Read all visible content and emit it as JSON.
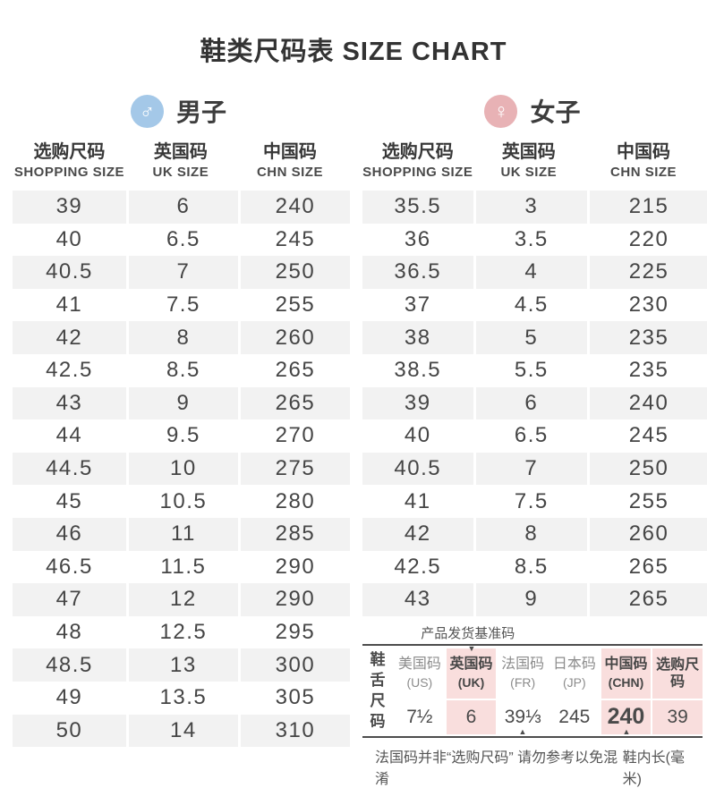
{
  "title": "鞋类尺码表 SIZE CHART",
  "icons": {
    "male": "♂",
    "female": "♀",
    "down_arrow": "▼",
    "up_arrow": "▲"
  },
  "columns": {
    "shopping_zh": "选购尺码",
    "shopping_en": "SHOPPING SIZE",
    "uk_zh": "英国码",
    "uk_en": "UK SIZE",
    "chn_zh": "中国码",
    "chn_en": "CHN SIZE"
  },
  "men": {
    "label": "男子",
    "accent": "#a4c8e8",
    "rows": [
      [
        "39",
        "6",
        "240"
      ],
      [
        "40",
        "6.5",
        "245"
      ],
      [
        "40.5",
        "7",
        "250"
      ],
      [
        "41",
        "7.5",
        "255"
      ],
      [
        "42",
        "8",
        "260"
      ],
      [
        "42.5",
        "8.5",
        "265"
      ],
      [
        "43",
        "9",
        "265"
      ],
      [
        "44",
        "9.5",
        "270"
      ],
      [
        "44.5",
        "10",
        "275"
      ],
      [
        "45",
        "10.5",
        "280"
      ],
      [
        "46",
        "11",
        "285"
      ],
      [
        "46.5",
        "11.5",
        "290"
      ],
      [
        "47",
        "12",
        "290"
      ],
      [
        "48",
        "12.5",
        "295"
      ],
      [
        "48.5",
        "13",
        "300"
      ],
      [
        "49",
        "13.5",
        "305"
      ],
      [
        "50",
        "14",
        "310"
      ]
    ]
  },
  "women": {
    "label": "女子",
    "accent": "#e8b2b5",
    "rows": [
      [
        "35.5",
        "3",
        "215"
      ],
      [
        "36",
        "3.5",
        "220"
      ],
      [
        "36.5",
        "4",
        "225"
      ],
      [
        "37",
        "4.5",
        "230"
      ],
      [
        "38",
        "5",
        "235"
      ],
      [
        "38.5",
        "5.5",
        "235"
      ],
      [
        "39",
        "6",
        "240"
      ],
      [
        "40",
        "6.5",
        "245"
      ],
      [
        "40.5",
        "7",
        "250"
      ],
      [
        "41",
        "7.5",
        "255"
      ],
      [
        "42",
        "8",
        "260"
      ],
      [
        "42.5",
        "8.5",
        "265"
      ],
      [
        "43",
        "9",
        "265"
      ]
    ]
  },
  "reference": {
    "top_label": "产品发货基准码",
    "row_label": "鞋舌尺码",
    "highlight_color": "#f9dedd",
    "columns": [
      {
        "key": "us",
        "zh": "美国码",
        "sub": "(US)",
        "value": "7½",
        "highlight": false,
        "arrow_top": false,
        "arrow_bottom": false,
        "emphasis": false
      },
      {
        "key": "uk",
        "zh": "英国码",
        "sub": "(UK)",
        "value": "6",
        "highlight": true,
        "arrow_top": true,
        "arrow_bottom": false,
        "emphasis": false
      },
      {
        "key": "fr",
        "zh": "法国码",
        "sub": "(FR)",
        "value": "39⅓",
        "highlight": false,
        "arrow_top": false,
        "arrow_bottom": true,
        "emphasis": false
      },
      {
        "key": "jp",
        "zh": "日本码",
        "sub": "(JP)",
        "value": "245",
        "highlight": false,
        "arrow_top": false,
        "arrow_bottom": false,
        "emphasis": false
      },
      {
        "key": "chn",
        "zh": "中国码",
        "sub": "(CHN)",
        "value": "240",
        "highlight": true,
        "arrow_top": false,
        "arrow_bottom": true,
        "emphasis": true
      },
      {
        "key": "shopping",
        "zh": "选购尺码",
        "sub": "",
        "value": "39",
        "highlight": true,
        "arrow_top": false,
        "arrow_bottom": false,
        "emphasis": false
      }
    ],
    "footnote_left": "法国码并非“选购尺码” 请勿参考以免混淆",
    "footnote_right": "鞋内长(毫米)"
  }
}
